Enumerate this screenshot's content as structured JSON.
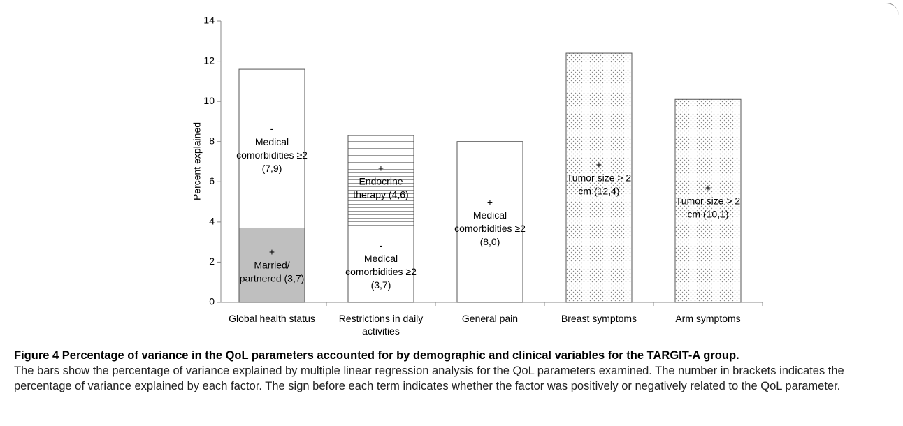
{
  "chart_data": {
    "type": "stacked_bar",
    "y_label": "Percent explained",
    "categories": [
      "Global health status",
      "Restrictions in daily activities",
      "General pain",
      "Breast symptoms",
      "Arm symptoms"
    ],
    "series": [
      {
        "values": [
          3.7,
          3.7,
          8.0,
          12.4,
          10.1
        ],
        "value_labels": [
          "(3,7)",
          "(3,7)",
          "(8,0)",
          "(12,4)",
          "(10,1)"
        ],
        "signs": [
          "+",
          "-",
          "+",
          "+",
          "+"
        ],
        "labels": [
          "Married/ partnered",
          "Medical comorbidities ≥2",
          "Medical comorbidities ≥2",
          "Tumor size > 2 cm",
          "Tumor size > 2 cm"
        ],
        "fills": [
          "#bfbfbf",
          "#ffffff",
          "#ffffff",
          "dots",
          "dots"
        ]
      },
      {
        "values": [
          7.9,
          4.6,
          null,
          null,
          null
        ],
        "value_labels": [
          "(7,9)",
          "(4,6)",
          null,
          null,
          null
        ],
        "signs": [
          "-",
          "+",
          null,
          null,
          null
        ],
        "labels": [
          "Medical comorbidities ≥2",
          "Endocrine therapy",
          null,
          null,
          null
        ],
        "fills": [
          "#ffffff",
          "hlines",
          null,
          null,
          null
        ]
      }
    ],
    "ylim": [
      0,
      14
    ],
    "yticks": [
      0,
      2,
      4,
      6,
      8,
      10,
      12,
      14
    ],
    "grid": false
  },
  "caption": {
    "title": "Figure 4 Percentage of variance in the QoL parameters accounted for by demographic and clinical variables for the TARGIT-A group.",
    "text": "The bars show the percentage of variance explained by multiple linear regression analysis for the QoL parameters examined. The number in brackets indicates the percentage of variance explained by each factor. The sign before each term indicates whether the factor was positively or negatively related to the QoL parameter."
  }
}
